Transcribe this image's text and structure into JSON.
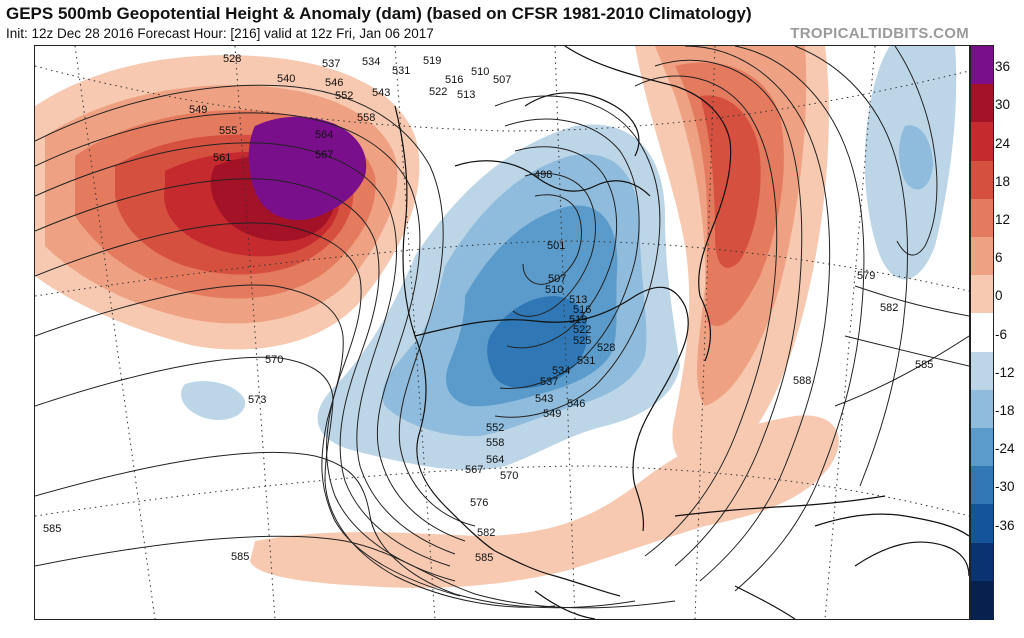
{
  "header": {
    "title": "GEPS 500mb Geopotential Height & Anomaly (dam) (based on CFSR 1981-2010 Climatology)",
    "subtitle": "Init: 12z Dec 28 2016   Forecast Hour: [216]   valid at 12z Fri, Jan 06 2017",
    "brand": "TROPICALTIDBITS.COM"
  },
  "colorbar": {
    "labels": [
      "36",
      "30",
      "24",
      "18",
      "12",
      "6",
      "0",
      "-6",
      "-12",
      "-18",
      "-24",
      "-30",
      "-36"
    ],
    "colors": [
      "#7a0f8c",
      "#a31226",
      "#c42a2e",
      "#d6503f",
      "#e47a5e",
      "#efa283",
      "#f7c9b0",
      "#ffffff",
      "#bcd6e8",
      "#8fbcdc",
      "#5a9bcb",
      "#2f78b5",
      "#14549a",
      "#0a3372",
      "#08204e"
    ]
  },
  "contour_labels": [
    "528",
    "540",
    "537",
    "534",
    "531",
    "519",
    "516",
    "510",
    "507",
    "546",
    "549",
    "552",
    "543",
    "522",
    "513",
    "555",
    "558",
    "561",
    "564",
    "567",
    "498",
    "501",
    "507",
    "510",
    "513",
    "516",
    "519",
    "522",
    "525",
    "528",
    "531",
    "534",
    "537",
    "543",
    "546",
    "549",
    "552",
    "558",
    "564",
    "567",
    "570",
    "576",
    "582",
    "585",
    "570",
    "573",
    "579",
    "582",
    "585",
    "588",
    "585",
    "585"
  ]
}
